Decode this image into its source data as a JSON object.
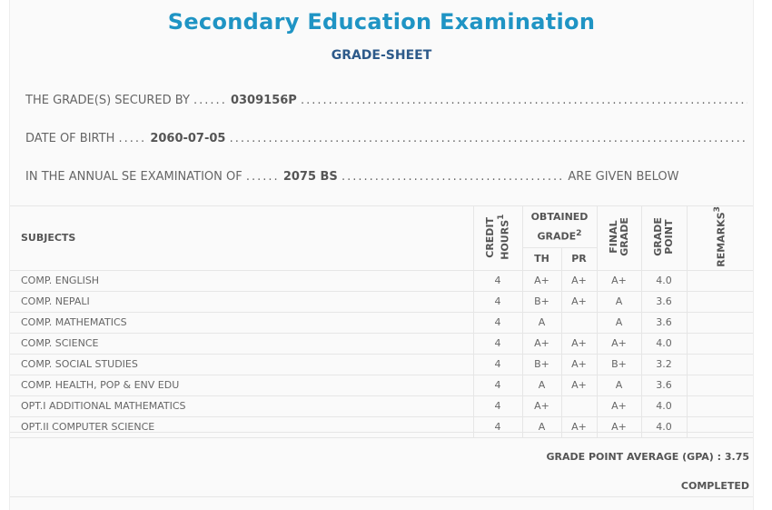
{
  "title": "Secondary Education Examination",
  "subtitle": "GRADE-SHEET",
  "info": {
    "secured_label": "THE GRADE(S) SECURED BY",
    "secured_value": "0309156P",
    "dob_label": "DATE OF BIRTH",
    "dob_value": "2060-07-05",
    "exam_label": "IN THE ANNUAL SE EXAMINATION OF",
    "exam_value": "2075 BS",
    "exam_suffix": "ARE GIVEN BELOW",
    "dots_short": "......",
    "dots_five": ".....",
    "dots_long": "...........................................................",
    "dots_mid": "........................................"
  },
  "table": {
    "headers": {
      "subjects": "SUBJECTS",
      "credit": "CREDIT HOURS",
      "credit_sup": "1",
      "obtained": "OBTAINED GRADE",
      "obtained_sup": "2",
      "th": "TH",
      "pr": "PR",
      "final": "FINAL GRADE",
      "point": "GRADE POINT",
      "remarks": "REMARKS",
      "remarks_sup": "3"
    },
    "rows": [
      {
        "subject": "COMP. ENGLISH",
        "credit": "4",
        "th": "A+",
        "pr": "A+",
        "final": "A+",
        "point": "4.0",
        "remarks": ""
      },
      {
        "subject": "COMP. NEPALI",
        "credit": "4",
        "th": "B+",
        "pr": "A+",
        "final": "A",
        "point": "3.6",
        "remarks": ""
      },
      {
        "subject": "COMP. MATHEMATICS",
        "credit": "4",
        "th": "A",
        "pr": "",
        "final": "A",
        "point": "3.6",
        "remarks": ""
      },
      {
        "subject": "COMP. SCIENCE",
        "credit": "4",
        "th": "A+",
        "pr": "A+",
        "final": "A+",
        "point": "4.0",
        "remarks": ""
      },
      {
        "subject": "COMP. SOCIAL STUDIES",
        "credit": "4",
        "th": "B+",
        "pr": "A+",
        "final": "B+",
        "point": "3.2",
        "remarks": ""
      },
      {
        "subject": "COMP. HEALTH, POP & ENV EDU",
        "credit": "4",
        "th": "A",
        "pr": "A+",
        "final": "A",
        "point": "3.6",
        "remarks": ""
      },
      {
        "subject": "OPT.I ADDITIONAL MATHEMATICS",
        "credit": "4",
        "th": "A+",
        "pr": "",
        "final": "A+",
        "point": "4.0",
        "remarks": ""
      },
      {
        "subject": "OPT.II COMPUTER SCIENCE",
        "credit": "4",
        "th": "A",
        "pr": "A+",
        "final": "A+",
        "point": "4.0",
        "remarks": ""
      }
    ]
  },
  "gpa": "GRADE POINT AVERAGE (GPA) : 3.75",
  "status": "COMPLETED"
}
